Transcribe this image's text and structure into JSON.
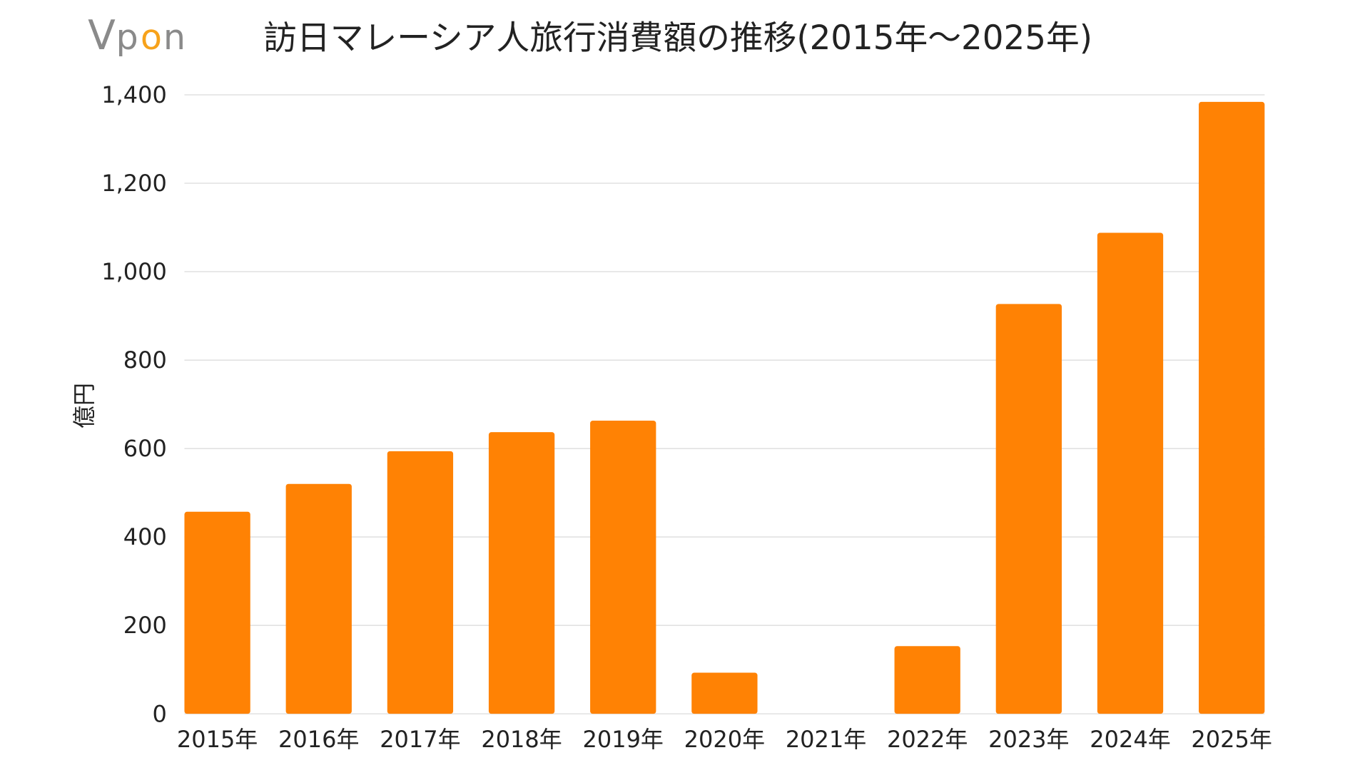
{
  "logo": {
    "text": "Vpon",
    "colors": {
      "gray": "#8a8a8a",
      "orange": "#f7a21b"
    }
  },
  "chart_data": {
    "type": "bar",
    "title": "訪日マレーシア人旅行消費額の推移(2015年～2025年)",
    "xlabel": "",
    "ylabel": "億円",
    "categories": [
      "2015年",
      "2016年",
      "2017年",
      "2018年",
      "2019年",
      "2020年",
      "2021年",
      "2022年",
      "2023年",
      "2024年",
      "2025年"
    ],
    "values": [
      457,
      520,
      594,
      637,
      663,
      93,
      0,
      153,
      927,
      1088,
      1384
    ],
    "ylim": [
      0,
      1400
    ],
    "yticks": [
      "0",
      "200",
      "400",
      "600",
      "800",
      "1,000",
      "1,200",
      "1,400"
    ],
    "grid": true,
    "bar_color": "#ff8204",
    "grid_color": "#d9d9d9"
  }
}
